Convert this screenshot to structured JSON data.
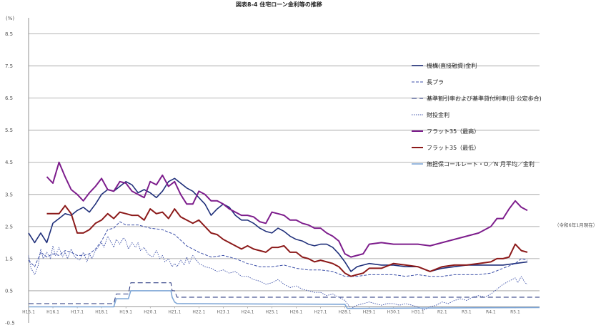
{
  "chart_data": {
    "type": "line",
    "title": "図表8-4  住宅ローン金利等の推移",
    "ylabel": "(%)",
    "note": "（令和6年1月現在）",
    "ylim": [
      -0.5,
      9.0
    ],
    "ytick_values": [
      -0.5,
      0.5,
      1.5,
      2.5,
      3.5,
      4.5,
      5.5,
      6.5,
      7.5,
      8.5
    ],
    "ytick_labels": [
      "-0.5",
      "0.5",
      "1.5",
      "2.5",
      "3.5",
      "4.5",
      "5.5",
      "6.5",
      "7.5",
      "8.5"
    ],
    "grid_major_y": [
      0.5,
      1.5,
      2.5,
      3.5,
      4.5,
      5.5,
      6.5,
      7.5,
      8.5
    ],
    "xlim": [
      2003.0,
      2024.0
    ],
    "x_tick_values": [
      2003.0,
      2004.0,
      2005.0,
      2006.0,
      2007.0,
      2008.0,
      2009.0,
      2010.0,
      2011.0,
      2012.0,
      2013.0,
      2014.0,
      2015.0,
      2016.0,
      2017.0,
      2018.0,
      2019.0,
      2020.0,
      2021.0,
      2022.0,
      2023.0
    ],
    "x_tick_labels": [
      "H15.1",
      "H16.1",
      "H17.1",
      "H18.1",
      "H19.1",
      "H20.1",
      "H21.1",
      "H22.1",
      "H23.1",
      "H24.1",
      "H25.1",
      "H26.1",
      "H27.1",
      "H28.1",
      "H29.1",
      "H30.1",
      "H31.1",
      "R2.1",
      "R3.1",
      "R4.1",
      "R5.1"
    ],
    "legend_position": "right",
    "series": [
      {
        "name": "機構(直接融資)金利",
        "color": "#1f2f7a",
        "width": 1.6,
        "dash": "",
        "x": [
          2003.0,
          2003.25,
          2003.5,
          2003.75,
          2004.0,
          2004.25,
          2004.5,
          2004.75,
          2005.0,
          2005.25,
          2005.5,
          2005.75,
          2006.0,
          2006.25,
          2006.5,
          2006.75,
          2007.0,
          2007.25,
          2007.5,
          2007.75,
          2008.0,
          2008.25,
          2008.5,
          2008.75,
          2009.0,
          2009.25,
          2009.5,
          2009.75,
          2010.0,
          2010.25,
          2010.5,
          2010.75,
          2011.0,
          2011.25,
          2011.5,
          2011.75,
          2012.0,
          2012.25,
          2012.5,
          2012.75,
          2013.0,
          2013.25,
          2013.5,
          2013.75,
          2014.0,
          2014.25,
          2014.5,
          2014.75,
          2015.0,
          2015.25,
          2015.5,
          2015.75,
          2016.0,
          2016.25,
          2016.5,
          2016.75,
          2017.0,
          2017.5,
          2018.0,
          2018.5,
          2019.0,
          2019.5,
          2020.0,
          2020.5,
          2021.0,
          2021.5,
          2022.0,
          2022.5,
          2023.0,
          2023.5
        ],
        "y": [
          2.3,
          2.0,
          2.3,
          2.0,
          2.6,
          2.75,
          2.9,
          2.85,
          3.0,
          3.1,
          2.95,
          3.2,
          3.5,
          3.65,
          3.6,
          3.75,
          3.9,
          3.8,
          3.55,
          3.65,
          3.55,
          3.4,
          3.6,
          3.9,
          4.0,
          3.85,
          3.7,
          3.6,
          3.4,
          3.2,
          2.85,
          3.05,
          3.2,
          3.1,
          2.85,
          2.7,
          2.7,
          2.6,
          2.45,
          2.35,
          2.3,
          2.45,
          2.35,
          2.2,
          2.1,
          2.05,
          1.95,
          1.9,
          1.95,
          1.95,
          1.85,
          1.65,
          1.4,
          1.1,
          1.25,
          1.3,
          1.35,
          1.3,
          1.3,
          1.25,
          1.25,
          1.1,
          1.2,
          1.25,
          1.3,
          1.3,
          1.3,
          1.3,
          1.35,
          1.4
        ]
      },
      {
        "name": "長プラ",
        "color": "#3b4fa8",
        "width": 1.0,
        "dash": "4 2",
        "x": [
          2003.0,
          2003.25,
          2003.5,
          2003.75,
          2004.0,
          2004.25,
          2004.5,
          2004.75,
          2005.0,
          2005.25,
          2005.5,
          2005.75,
          2006.0,
          2006.25,
          2006.5,
          2006.75,
          2007.0,
          2007.5,
          2008.0,
          2008.5,
          2009.0,
          2009.5,
          2010.0,
          2010.5,
          2011.0,
          2011.5,
          2012.0,
          2012.5,
          2013.0,
          2013.5,
          2014.0,
          2014.5,
          2015.0,
          2015.5,
          2016.0,
          2016.5,
          2017.0,
          2017.5,
          2018.0,
          2018.5,
          2019.0,
          2019.5,
          2020.0,
          2020.5,
          2021.0,
          2021.5,
          2022.0,
          2022.5,
          2023.0,
          2023.25,
          2023.5
        ],
        "y": [
          1.45,
          1.25,
          1.7,
          1.55,
          1.65,
          1.6,
          1.75,
          1.7,
          1.6,
          1.6,
          1.65,
          1.8,
          2.05,
          2.4,
          2.45,
          2.65,
          2.55,
          2.55,
          2.45,
          2.4,
          2.25,
          1.9,
          1.7,
          1.55,
          1.6,
          1.5,
          1.35,
          1.25,
          1.25,
          1.3,
          1.2,
          1.15,
          1.15,
          1.1,
          0.95,
          0.95,
          1.0,
          1.0,
          1.0,
          0.95,
          1.0,
          0.95,
          0.95,
          1.0,
          1.0,
          1.0,
          1.05,
          1.2,
          1.35,
          1.5,
          1.45
        ]
      },
      {
        "name": "基準割引率および基準貸付利率(旧 公定歩合)",
        "color": "#1f2f7a",
        "width": 1.0,
        "dash": "7 4",
        "x": [
          2003.0,
          2006.5,
          2006.6,
          2007.1,
          2007.2,
          2008.85,
          2008.9,
          2009.0,
          2009.1,
          2024.0
        ],
        "y": [
          0.1,
          0.1,
          0.4,
          0.4,
          0.75,
          0.75,
          0.5,
          0.5,
          0.3,
          0.3
        ]
      },
      {
        "name": "財投金利",
        "color": "#3b4fa8",
        "width": 0.9,
        "dash": "1.5 1.5",
        "x": [
          2003.0,
          2003.1,
          2003.25,
          2003.4,
          2003.5,
          2003.6,
          2003.75,
          2003.9,
          2004.0,
          2004.1,
          2004.25,
          2004.4,
          2004.5,
          2004.6,
          2004.75,
          2004.9,
          2005.0,
          2005.1,
          2005.25,
          2005.4,
          2005.5,
          2005.6,
          2005.75,
          2005.9,
          2006.0,
          2006.1,
          2006.25,
          2006.4,
          2006.5,
          2006.6,
          2006.75,
          2006.9,
          2007.0,
          2007.1,
          2007.25,
          2007.4,
          2007.5,
          2007.6,
          2007.75,
          2007.9,
          2008.0,
          2008.1,
          2008.25,
          2008.4,
          2008.5,
          2008.6,
          2008.75,
          2008.9,
          2009.0,
          2009.1,
          2009.25,
          2009.4,
          2009.5,
          2009.6,
          2009.75,
          2009.9,
          2010.0,
          2010.25,
          2010.5,
          2010.75,
          2011.0,
          2011.25,
          2011.5,
          2011.75,
          2012.0,
          2012.25,
          2012.5,
          2012.75,
          2013.0,
          2013.25,
          2013.5,
          2013.75,
          2014.0,
          2014.25,
          2014.5,
          2014.75,
          2015.0,
          2015.25,
          2015.5,
          2015.75,
          2016.0,
          2016.25,
          2016.5,
          2016.75,
          2017.0,
          2017.25,
          2017.5,
          2017.75,
          2018.0,
          2018.25,
          2018.5,
          2018.75,
          2019.0,
          2019.25,
          2019.5,
          2019.75,
          2020.0,
          2020.25,
          2020.5,
          2020.75,
          2021.0,
          2021.25,
          2021.5,
          2021.75,
          2022.0,
          2022.25,
          2022.5,
          2022.75,
          2023.0,
          2023.1,
          2023.25,
          2023.4,
          2023.5
        ],
        "y": [
          1.6,
          1.2,
          1.0,
          1.3,
          1.8,
          1.5,
          1.7,
          1.5,
          1.9,
          1.6,
          1.85,
          1.55,
          1.7,
          1.5,
          1.8,
          1.55,
          1.5,
          1.45,
          1.7,
          1.4,
          1.65,
          1.5,
          1.75,
          1.9,
          2.0,
          1.85,
          2.2,
          2.0,
          1.85,
          2.1,
          1.95,
          2.15,
          2.05,
          1.8,
          2.0,
          1.85,
          2.0,
          1.75,
          1.85,
          1.65,
          1.6,
          1.55,
          1.75,
          1.5,
          1.6,
          1.4,
          1.5,
          1.25,
          1.35,
          1.25,
          1.45,
          1.3,
          1.55,
          1.35,
          1.6,
          1.45,
          1.35,
          1.25,
          1.2,
          1.1,
          1.15,
          1.05,
          1.1,
          0.95,
          0.95,
          0.85,
          0.8,
          0.7,
          0.75,
          0.85,
          0.7,
          0.6,
          0.65,
          0.55,
          0.5,
          0.45,
          0.45,
          0.35,
          0.4,
          0.3,
          0.2,
          -0.05,
          0.05,
          0.1,
          0.15,
          0.1,
          0.05,
          0.1,
          0.1,
          0.05,
          0.1,
          0.05,
          0.0,
          -0.1,
          0.0,
          0.05,
          0.15,
          0.1,
          0.2,
          0.25,
          0.2,
          0.3,
          0.35,
          0.3,
          0.4,
          0.55,
          0.7,
          0.8,
          0.9,
          0.75,
          0.95,
          0.75,
          0.7
        ]
      },
      {
        "name": "フラット35（最高）",
        "color": "#7d1d8c",
        "width": 2.0,
        "dash": "",
        "x": [
          2003.75,
          2004.0,
          2004.25,
          2004.5,
          2004.75,
          2005.0,
          2005.25,
          2005.5,
          2005.75,
          2006.0,
          2006.25,
          2006.5,
          2006.75,
          2007.0,
          2007.25,
          2007.5,
          2007.75,
          2008.0,
          2008.25,
          2008.5,
          2008.75,
          2009.0,
          2009.25,
          2009.5,
          2009.75,
          2010.0,
          2010.25,
          2010.5,
          2010.75,
          2011.0,
          2011.25,
          2011.5,
          2011.75,
          2012.0,
          2012.25,
          2012.5,
          2012.75,
          2013.0,
          2013.25,
          2013.5,
          2013.75,
          2014.0,
          2014.25,
          2014.5,
          2014.75,
          2015.0,
          2015.25,
          2015.5,
          2015.75,
          2016.0,
          2016.25,
          2016.5,
          2016.75,
          2017.0,
          2017.5,
          2018.0,
          2018.5,
          2019.0,
          2019.5,
          2020.0,
          2020.5,
          2021.0,
          2021.5,
          2022.0,
          2022.25,
          2022.5,
          2022.75,
          2023.0,
          2023.25,
          2023.5
        ],
        "y": [
          4.05,
          3.85,
          4.5,
          4.05,
          3.65,
          3.5,
          3.3,
          3.55,
          3.75,
          4.0,
          3.65,
          3.6,
          3.9,
          3.85,
          3.6,
          3.5,
          3.4,
          3.9,
          3.8,
          4.1,
          3.75,
          3.9,
          3.5,
          3.2,
          3.2,
          3.6,
          3.5,
          3.3,
          3.3,
          3.2,
          3.05,
          2.95,
          2.85,
          2.85,
          2.8,
          2.65,
          2.6,
          2.95,
          2.9,
          2.85,
          2.7,
          2.7,
          2.6,
          2.55,
          2.45,
          2.45,
          2.3,
          2.2,
          2.05,
          1.65,
          1.55,
          1.6,
          1.65,
          1.95,
          2.0,
          1.95,
          1.95,
          1.95,
          1.9,
          2.0,
          2.1,
          2.2,
          2.3,
          2.5,
          2.75,
          2.75,
          3.05,
          3.3,
          3.1,
          3.0
        ]
      },
      {
        "name": "フラット35（最低）",
        "color": "#8c1a1a",
        "width": 2.0,
        "dash": "",
        "x": [
          2003.75,
          2004.0,
          2004.25,
          2004.5,
          2004.75,
          2005.0,
          2005.25,
          2005.5,
          2005.75,
          2006.0,
          2006.25,
          2006.5,
          2006.75,
          2007.0,
          2007.25,
          2007.5,
          2007.75,
          2008.0,
          2008.25,
          2008.5,
          2008.75,
          2009.0,
          2009.25,
          2009.5,
          2009.75,
          2010.0,
          2010.25,
          2010.5,
          2010.75,
          2011.0,
          2011.25,
          2011.5,
          2011.75,
          2012.0,
          2012.25,
          2012.5,
          2012.75,
          2013.0,
          2013.25,
          2013.5,
          2013.75,
          2014.0,
          2014.25,
          2014.5,
          2014.75,
          2015.0,
          2015.25,
          2015.5,
          2015.75,
          2016.0,
          2016.25,
          2016.5,
          2016.75,
          2017.0,
          2017.5,
          2018.0,
          2018.5,
          2019.0,
          2019.5,
          2020.0,
          2020.5,
          2021.0,
          2021.5,
          2022.0,
          2022.25,
          2022.5,
          2022.75,
          2023.0,
          2023.25,
          2023.5
        ],
        "y": [
          2.9,
          2.9,
          2.9,
          3.15,
          2.9,
          2.3,
          2.3,
          2.4,
          2.6,
          2.7,
          2.9,
          2.75,
          2.95,
          2.9,
          2.85,
          2.85,
          2.7,
          3.05,
          2.9,
          2.95,
          2.75,
          3.05,
          2.8,
          2.7,
          2.6,
          2.7,
          2.5,
          2.3,
          2.25,
          2.1,
          2.0,
          1.9,
          1.8,
          1.9,
          1.8,
          1.75,
          1.7,
          1.85,
          1.85,
          1.9,
          1.7,
          1.7,
          1.55,
          1.5,
          1.4,
          1.45,
          1.4,
          1.35,
          1.25,
          1.05,
          0.95,
          1.0,
          1.05,
          1.2,
          1.2,
          1.35,
          1.3,
          1.25,
          1.1,
          1.25,
          1.3,
          1.3,
          1.35,
          1.4,
          1.5,
          1.5,
          1.55,
          1.95,
          1.75,
          1.7
        ]
      },
      {
        "name": "無担保コールレート・O／N  月平均／金利",
        "color": "#7ea6d6",
        "width": 1.6,
        "dash": "",
        "x": [
          2003.0,
          2006.5,
          2006.6,
          2007.1,
          2007.2,
          2008.85,
          2008.9,
          2009.0,
          2009.1,
          2016.0,
          2016.1,
          2024.0
        ],
        "y": [
          0.0,
          0.0,
          0.25,
          0.25,
          0.5,
          0.5,
          0.3,
          0.15,
          0.1,
          0.08,
          -0.05,
          -0.02
        ]
      }
    ]
  }
}
